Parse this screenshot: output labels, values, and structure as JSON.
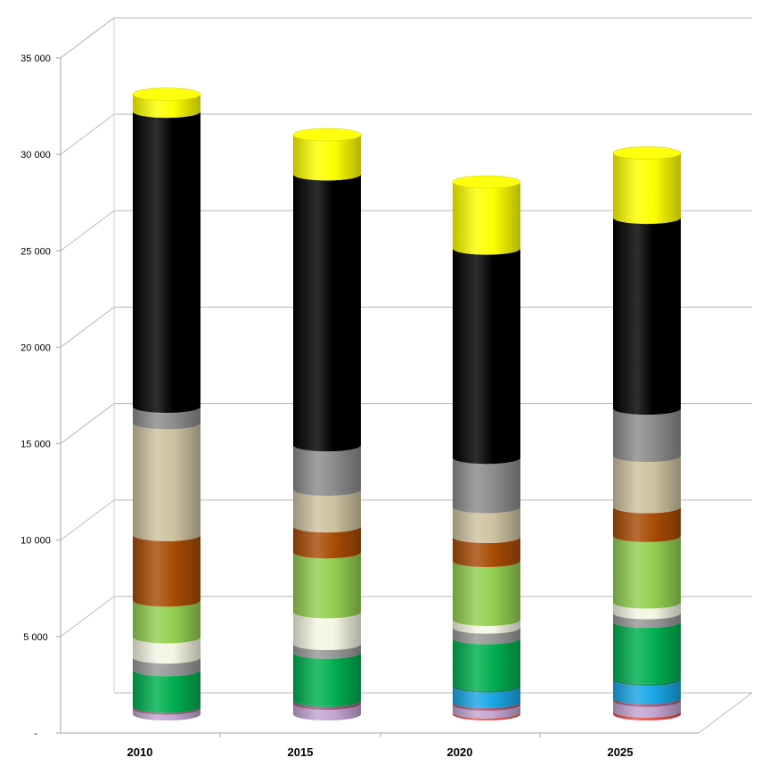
{
  "chart_data": {
    "type": "bar",
    "stacked": true,
    "style": "3d-cylinder",
    "categories": [
      "2010",
      "2015",
      "2020",
      "2025"
    ],
    "ylim": [
      0,
      35000
    ],
    "yticks": [
      {
        "value": 0,
        "label": "-"
      },
      {
        "value": 5000,
        "label": "5 000"
      },
      {
        "value": 10000,
        "label": "10 000"
      },
      {
        "value": 15000,
        "label": "15 000"
      },
      {
        "value": 20000,
        "label": "20 000"
      },
      {
        "value": 25000,
        "label": "25 000"
      },
      {
        "value": 30000,
        "label": "30 000"
      },
      {
        "value": 35000,
        "label": "35 000"
      }
    ],
    "grid": true,
    "legend": "none",
    "series": [
      {
        "color": "#e8524a",
        "values": [
          0,
          0,
          100,
          150
        ]
      },
      {
        "color": "#c3a6d2",
        "values": [
          300,
          550,
          400,
          550
        ]
      },
      {
        "color": "#a06080",
        "values": [
          100,
          150,
          150,
          150
        ]
      },
      {
        "color": "#1aa7e8",
        "values": [
          0,
          0,
          800,
          950
        ]
      },
      {
        "color": "#0f8f4f",
        "values": [
          0,
          50,
          100,
          100
        ]
      },
      {
        "color": "#00b050",
        "values": [
          1900,
          2450,
          2400,
          2900
        ]
      },
      {
        "color": "#999999",
        "values": [
          650,
          450,
          550,
          450
        ]
      },
      {
        "color": "#f5f5e4",
        "values": [
          1050,
          1650,
          400,
          550
        ]
      },
      {
        "color": "#92d050",
        "values": [
          1900,
          3100,
          3050,
          3450
        ]
      },
      {
        "color": "#a84c06",
        "values": [
          3400,
          1350,
          1250,
          1500
        ]
      },
      {
        "color": "#cec2a0",
        "values": [
          5800,
          1900,
          1550,
          2650
        ]
      },
      {
        "color": "#8c8c8c",
        "values": [
          850,
          2300,
          2550,
          2450
        ]
      },
      {
        "color": "#000000",
        "values": [
          15300,
          14050,
          10850,
          9900
        ]
      },
      {
        "color": "#ffff00",
        "values": [
          900,
          2050,
          3450,
          3350
        ]
      }
    ]
  }
}
